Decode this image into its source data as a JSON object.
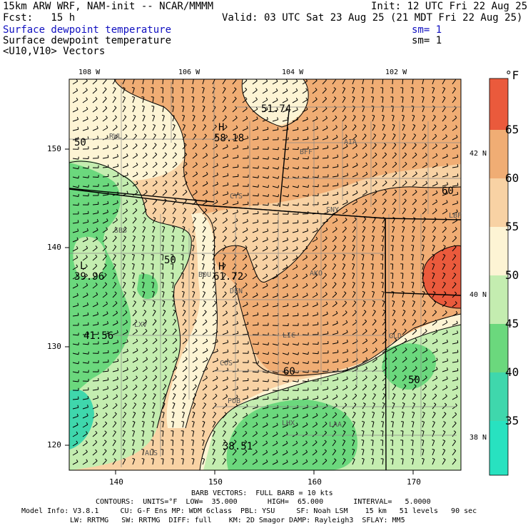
{
  "header": {
    "model_line": "15km ARW WRF, NAM-init -- NCAR/MMMM",
    "init_line": "Init: 12 UTC Fri 22 Aug 25",
    "fcst_line": "Fcst:   15 h",
    "valid_line": "Valid: 03 UTC Sat 23 Aug 25 (21 MDT Fri 22 Aug 25)",
    "field1": "Surface dewpoint temperature",
    "field1_sm": "sm= 1",
    "field2": "Surface dewpoint temperature",
    "field2_sm": "sm= 1",
    "field3": "<U10,V10> Vectors"
  },
  "map": {
    "top_lon_labels": [
      "108 W",
      "106 W",
      "104 W",
      "102 W"
    ],
    "bottom_x_labels": [
      "140",
      "150",
      "160",
      "170"
    ],
    "left_y_labels": [
      "150",
      "140",
      "130",
      "120"
    ],
    "right_lat_labels": [
      "42 N",
      "40 N",
      "38 N"
    ],
    "stations": [
      "RWL",
      "BFF",
      "AIA",
      "CYS",
      "SNY",
      "SBS",
      "BOU",
      "DEN",
      "AKO",
      "LBF",
      "GLD",
      "LIC",
      "COS",
      "LXV",
      "PUB",
      "LHX",
      "LAA",
      "ALS"
    ],
    "extrema": [
      {
        "kind": "H",
        "value": "58.18"
      },
      {
        "kind": "",
        "value": "51.74"
      },
      {
        "kind": "H",
        "value": "61.72"
      },
      {
        "kind": "L",
        "value": "39.96"
      },
      {
        "kind": "",
        "value": "41.56"
      },
      {
        "kind": "",
        "value": "38.51"
      }
    ],
    "contour_labels": [
      "50",
      "60",
      "60",
      "50",
      "50"
    ]
  },
  "colorbar": {
    "unit": "°F",
    "levels": [
      "65",
      "60",
      "55",
      "50",
      "45",
      "40",
      "35"
    ],
    "colors": [
      "#ea5a3c",
      "#f0ad74",
      "#f8d2a4",
      "#fdf4d4",
      "#c4edb0",
      "#6bd87d",
      "#3fd7ac",
      "#28e2c0"
    ]
  },
  "field_colors": {
    "red_60_65": "#ea5a3c",
    "orange_55_60": "#f0ad74",
    "peach_50_55": "#f8d2a4",
    "cream_45_50": "#fdf4d4",
    "lightgreen_40_45": "#c4edb0",
    "green_35_40": "#6bd87d",
    "teal_below_35": "#3fd7ac"
  },
  "footer": {
    "barb_line": "BARB VECTORS:  FULL BARB = 10 kts",
    "contours_line": "CONTOURS:  UNITS=°F  LOW=  35.000       HIGH=  65.000       INTERVAL=   5.0000",
    "model_info": "Model Info: V3.8.1     CU: G-F Ens MP: WDM 6class  PBL: YSU     SF: Noah LSM    15 km   51 levels   90 sec",
    "physics_line": "LW: RRTMG   SW: RRTMG  DIFF: full    KM: 2D Smagor DAMP: Rayleigh3  SFLAY: MM5"
  }
}
